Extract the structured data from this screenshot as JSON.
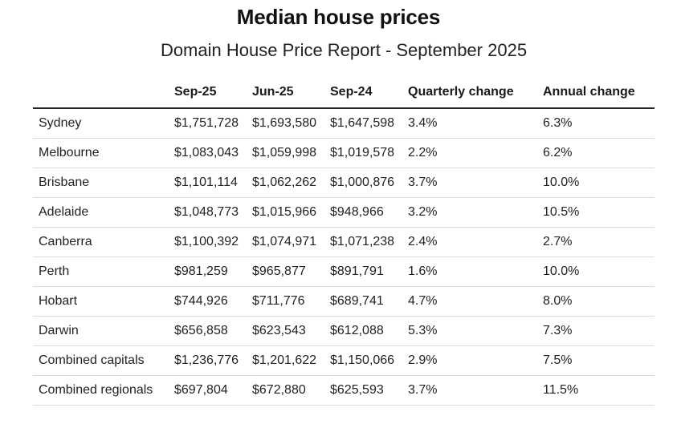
{
  "chart_data": {
    "type": "table",
    "title": "Median house prices",
    "subtitle": "Domain House Price Report - September 2025",
    "columns": [
      "",
      "Sep-25",
      "Jun-25",
      "Sep-24",
      "Quarterly change",
      "Annual change"
    ],
    "rows": [
      [
        "Sydney",
        "$1,751,728",
        "$1,693,580",
        "$1,647,598",
        "3.4%",
        "6.3%"
      ],
      [
        "Melbourne",
        "$1,083,043",
        "$1,059,998",
        "$1,019,578",
        "2.2%",
        "6.2%"
      ],
      [
        "Brisbane",
        "$1,101,114",
        "$1,062,262",
        "$1,000,876",
        "3.7%",
        "10.0%"
      ],
      [
        "Adelaide",
        "$1,048,773",
        "$1,015,966",
        "$948,966",
        "3.2%",
        "10.5%"
      ],
      [
        "Canberra",
        "$1,100,392",
        "$1,074,971",
        "$1,071,238",
        "2.4%",
        "2.7%"
      ],
      [
        "Perth",
        "$981,259",
        "$965,877",
        "$891,791",
        "1.6%",
        "10.0%"
      ],
      [
        "Hobart",
        "$744,926",
        "$711,776",
        "$689,741",
        "4.7%",
        "8.0%"
      ],
      [
        "Darwin",
        "$656,858",
        "$623,543",
        "$612,088",
        "5.3%",
        "7.3%"
      ],
      [
        "Combined capitals",
        "$1,236,776",
        "$1,201,622",
        "$1,150,066",
        "2.9%",
        "7.5%"
      ],
      [
        "Combined regionals",
        "$697,804",
        "$672,880",
        "$625,593",
        "3.7%",
        "11.5%"
      ]
    ]
  }
}
